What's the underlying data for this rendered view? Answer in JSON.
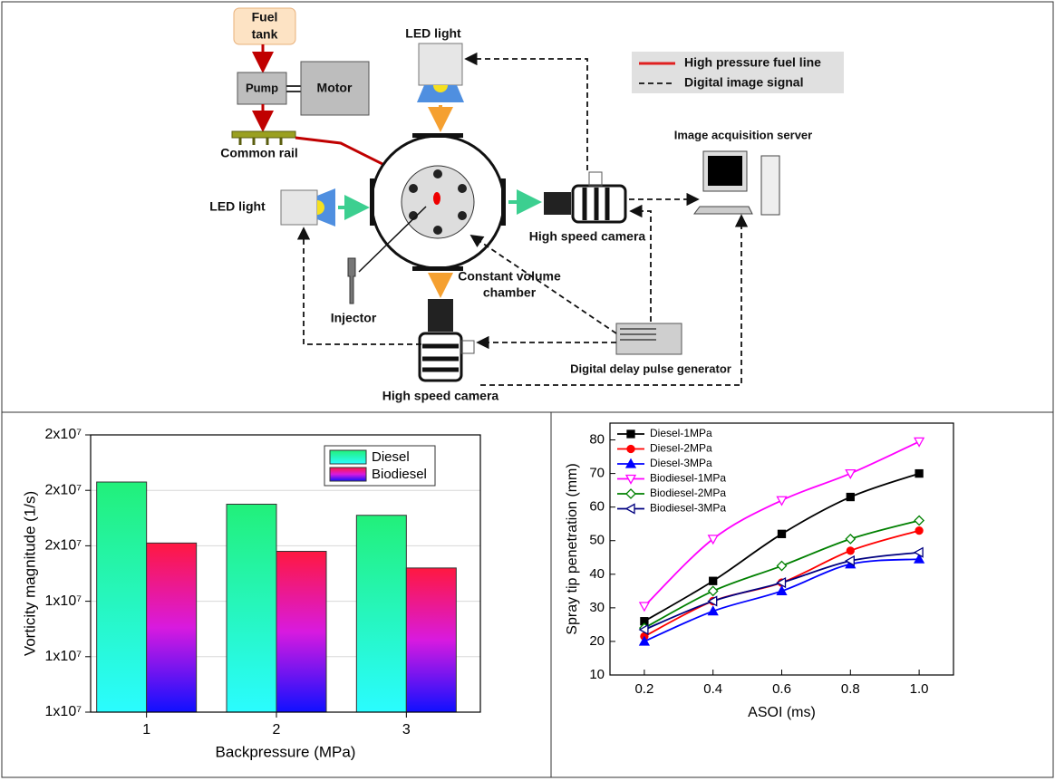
{
  "diagram": {
    "fuel_tank": [
      "Fuel",
      "tank"
    ],
    "pump": "Pump",
    "motor": "Motor",
    "common_rail": "Common rail",
    "led_top": "LED light",
    "led_left": "LED light",
    "legend_fuel": "High pressure fuel line",
    "legend_signal": "Digital image signal",
    "server": "Image acquisition server",
    "camera_right": "High speed camera",
    "chamber": [
      "Constant volume",
      "chamber"
    ],
    "injector": "Injector",
    "pulse_generator": "Digital delay pulse generator",
    "camera_bottom": "High speed camera"
  },
  "chart_data": [
    {
      "type": "bar",
      "xlabel": "Backpressure (MPa)",
      "ylabel": "Vorticity magnitude (1/s)",
      "categories": [
        "1",
        "2",
        "3"
      ],
      "series": [
        {
          "name": "Diesel",
          "colors": [
            "#22f07a",
            "#2afcff"
          ],
          "values": [
            18300000,
            17500000,
            17100000
          ]
        },
        {
          "name": "Biodiesel",
          "colors": [
            "#ff1840",
            "#d81adf",
            "#1010ff"
          ],
          "values": [
            16100000,
            15800000,
            15200000
          ]
        }
      ],
      "ylim": [
        10000000,
        20000000
      ],
      "yticks": [
        {
          "value": 10000000,
          "label": "1x10⁷"
        },
        {
          "value": 12000000,
          "label": "1x10⁷"
        },
        {
          "value": 14000000,
          "label": "1x10⁷"
        },
        {
          "value": 16000000,
          "label": "2x10⁷"
        },
        {
          "value": 18000000,
          "label": "2x10⁷"
        },
        {
          "value": 20000000,
          "label": "2x10⁷"
        }
      ],
      "grid": true,
      "legend": "upper right"
    },
    {
      "type": "line",
      "xlabel": "ASOI (ms)",
      "ylabel": "Spray tip penetration (mm)",
      "x": [
        0.2,
        0.4,
        0.6,
        0.8,
        1.0
      ],
      "series": [
        {
          "name": "Diesel-1MPa",
          "color": "#000000",
          "marker": "square",
          "values": [
            26,
            38,
            52,
            63,
            70
          ]
        },
        {
          "name": "Diesel-2MPa",
          "color": "#ff0000",
          "marker": "circle",
          "values": [
            21.5,
            32,
            37.5,
            47,
            53
          ]
        },
        {
          "name": "Diesel-3MPa",
          "color": "#0000ff",
          "marker": "triangle",
          "values": [
            20,
            29,
            35,
            43,
            44.5
          ]
        },
        {
          "name": "Biodiesel-1MPa",
          "color": "#ff00ff",
          "marker": "open-triangle-down",
          "values": [
            30.5,
            50.5,
            62,
            70,
            79.5
          ]
        },
        {
          "name": "Biodiesel-2MPa",
          "color": "#008000",
          "marker": "open-diamond",
          "values": [
            24,
            35,
            42.5,
            50.5,
            56
          ]
        },
        {
          "name": "Biodiesel-3MPa",
          "color": "#000080",
          "marker": "open-triangle-left",
          "values": [
            23.5,
            32,
            37.5,
            44,
            46.5
          ]
        }
      ],
      "xlim": [
        0.1,
        1.1
      ],
      "xticks": [
        0.2,
        0.4,
        0.6,
        0.8,
        {
          "value": 1,
          "label": "1.0"
        }
      ],
      "ylim": [
        10,
        85
      ],
      "yticks": [
        10,
        20,
        30,
        40,
        50,
        60,
        70,
        80
      ],
      "legend": "upper left"
    }
  ]
}
